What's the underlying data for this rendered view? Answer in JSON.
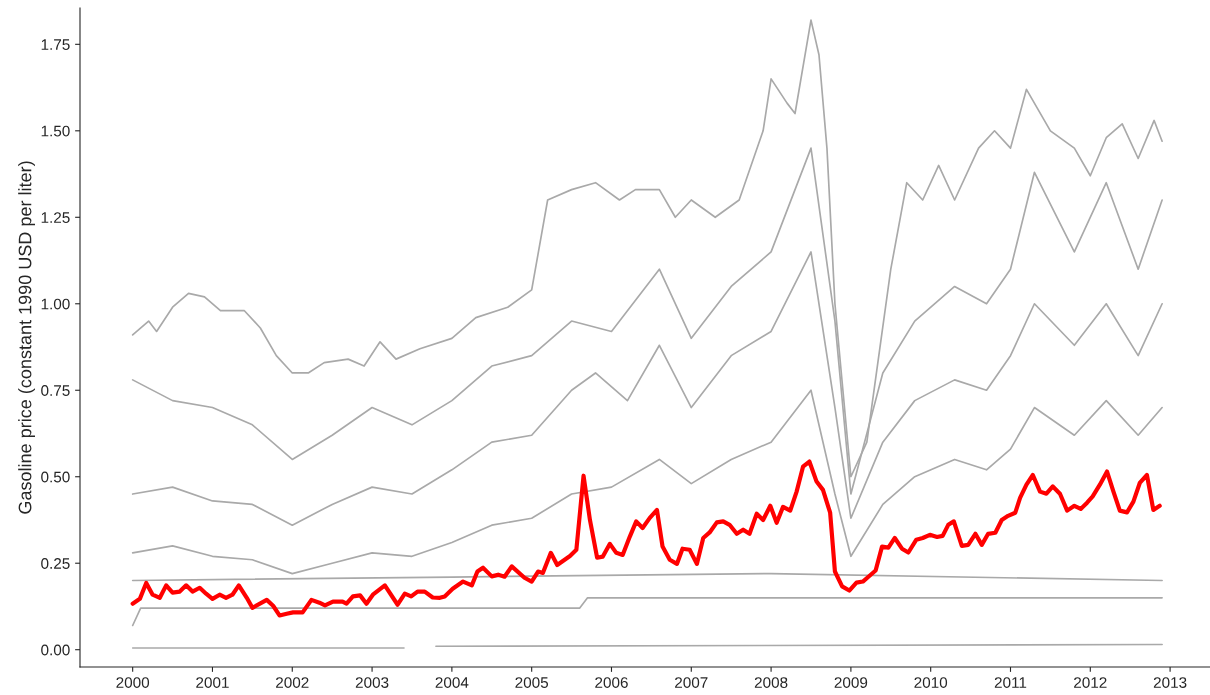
{
  "chart_data": {
    "type": "line",
    "ylabel": "Gasoline price (constant 1990 USD per liter)",
    "xlim": [
      1999.34,
      2013.5
    ],
    "ylim": [
      -0.05,
      1.855
    ],
    "xticks": [
      2000,
      2001,
      2002,
      2003,
      2004,
      2005,
      2006,
      2007,
      2008,
      2009,
      2010,
      2011,
      2012,
      2013
    ],
    "yticks": [
      {
        "value": 0,
        "label": "0.00"
      },
      {
        "value": 0.25,
        "label": "0.25"
      },
      {
        "value": 0.5,
        "label": "0.50"
      },
      {
        "value": 0.75,
        "label": "0.75"
      },
      {
        "value": 1,
        "label": "1.00"
      },
      {
        "value": 1.25,
        "label": "1.25"
      },
      {
        "value": 1.5,
        "label": "1.50"
      },
      {
        "value": 1.75,
        "label": "1.75"
      }
    ],
    "grid": false,
    "marker": "none",
    "line_style": "solid",
    "series": [
      {
        "color": "#a9a9a9",
        "x": [
          2000.0,
          2000.2,
          2000.3,
          2000.5,
          2000.7,
          2000.9,
          2001.1,
          2001.4,
          2001.6,
          2001.8,
          2002.0,
          2002.2,
          2002.4,
          2002.7,
          2002.9,
          2003.1,
          2003.3,
          2003.6,
          2004.0,
          2004.3,
          2004.7,
          2005.0,
          2005.2,
          2005.5,
          2005.8,
          2006.1,
          2006.3,
          2006.6,
          2006.8,
          2007.0,
          2007.3,
          2007.6,
          2007.9,
          2008.0,
          2008.2,
          2008.3,
          2008.5,
          2008.6,
          2008.7,
          2008.8,
          2009.0,
          2009.2,
          2009.5,
          2009.7,
          2009.9,
          2010.1,
          2010.3,
          2010.6,
          2010.8,
          2011.0,
          2011.2,
          2011.5,
          2011.8,
          2012.0,
          2012.2,
          2012.4,
          2012.6,
          2012.8,
          2012.9
        ],
        "values": [
          0.91,
          0.95,
          0.92,
          0.99,
          1.03,
          1.02,
          0.98,
          0.98,
          0.93,
          0.85,
          0.8,
          0.8,
          0.83,
          0.84,
          0.82,
          0.89,
          0.84,
          0.87,
          0.9,
          0.96,
          0.99,
          1.04,
          1.3,
          1.33,
          1.35,
          1.3,
          1.33,
          1.33,
          1.25,
          1.3,
          1.25,
          1.3,
          1.5,
          1.65,
          1.58,
          1.55,
          1.82,
          1.72,
          1.45,
          1.0,
          0.5,
          0.6,
          1.1,
          1.35,
          1.3,
          1.4,
          1.3,
          1.45,
          1.5,
          1.45,
          1.62,
          1.5,
          1.45,
          1.37,
          1.48,
          1.52,
          1.42,
          1.53,
          1.47
        ]
      },
      {
        "color": "#a9a9a9",
        "x": [
          2000.0,
          2000.5,
          2001.0,
          2001.5,
          2002.0,
          2002.5,
          2003.0,
          2003.5,
          2004.0,
          2004.5,
          2005.0,
          2005.5,
          2006.0,
          2006.6,
          2007.0,
          2007.5,
          2008.0,
          2008.5,
          2008.8,
          2009.0,
          2009.4,
          2009.8,
          2010.3,
          2010.7,
          2011.0,
          2011.3,
          2011.8,
          2012.2,
          2012.6,
          2012.9
        ],
        "values": [
          0.78,
          0.72,
          0.7,
          0.65,
          0.55,
          0.62,
          0.7,
          0.65,
          0.72,
          0.82,
          0.85,
          0.95,
          0.92,
          1.1,
          0.9,
          1.05,
          1.15,
          1.45,
          0.95,
          0.45,
          0.8,
          0.95,
          1.05,
          1.0,
          1.1,
          1.38,
          1.15,
          1.35,
          1.1,
          1.3
        ]
      },
      {
        "color": "#a9a9a9",
        "x": [
          2000.0,
          2000.5,
          2001.0,
          2001.5,
          2002.0,
          2002.5,
          2003.0,
          2003.5,
          2004.0,
          2004.5,
          2005.0,
          2005.5,
          2005.8,
          2006.2,
          2006.6,
          2007.0,
          2007.5,
          2008.0,
          2008.5,
          2008.8,
          2009.0,
          2009.4,
          2009.8,
          2010.3,
          2010.7,
          2011.0,
          2011.3,
          2011.8,
          2012.2,
          2012.6,
          2012.9
        ],
        "values": [
          0.45,
          0.47,
          0.43,
          0.42,
          0.36,
          0.42,
          0.47,
          0.45,
          0.52,
          0.6,
          0.62,
          0.75,
          0.8,
          0.72,
          0.88,
          0.7,
          0.85,
          0.92,
          1.15,
          0.7,
          0.38,
          0.6,
          0.72,
          0.78,
          0.75,
          0.85,
          1.0,
          0.88,
          1.0,
          0.85,
          1.0
        ]
      },
      {
        "color": "#a9a9a9",
        "x": [
          2000.0,
          2000.5,
          2001.0,
          2001.5,
          2002.0,
          2002.5,
          2003.0,
          2003.5,
          2004.0,
          2004.5,
          2005.0,
          2005.5,
          2006.0,
          2006.6,
          2007.0,
          2007.5,
          2008.0,
          2008.5,
          2008.8,
          2009.0,
          2009.4,
          2009.8,
          2010.3,
          2010.7,
          2011.0,
          2011.3,
          2011.8,
          2012.2,
          2012.6,
          2012.9
        ],
        "values": [
          0.28,
          0.3,
          0.27,
          0.26,
          0.22,
          0.25,
          0.28,
          0.27,
          0.31,
          0.36,
          0.38,
          0.45,
          0.47,
          0.55,
          0.48,
          0.55,
          0.6,
          0.75,
          0.45,
          0.27,
          0.42,
          0.5,
          0.55,
          0.52,
          0.58,
          0.7,
          0.62,
          0.72,
          0.62,
          0.7
        ]
      },
      {
        "color": "#a9a9a9",
        "x": [
          2000.0,
          2004.0,
          2008.0,
          2012.9
        ],
        "values": [
          0.2,
          0.21,
          0.22,
          0.2
        ]
      },
      {
        "color": "#a9a9a9",
        "x": [
          2000.0,
          2000.1,
          2005.6,
          2005.7,
          2012.9
        ],
        "values": [
          0.07,
          0.12,
          0.12,
          0.15,
          0.15
        ]
      },
      {
        "color": "#a9a9a9",
        "x": [
          2000.0,
          2003.4,
          2003.5,
          2003.8,
          2012.9
        ],
        "values": [
          0.005,
          0.005,
          null,
          0.01,
          0.015
        ]
      },
      {
        "color": "#ff0000",
        "x": [
          2000.0,
          2000.09,
          2000.17,
          2000.25,
          2000.34,
          2000.42,
          2000.5,
          2000.59,
          2000.67,
          2000.75,
          2000.84,
          2000.92,
          2001.0,
          2001.09,
          2001.17,
          2001.25,
          2001.33,
          2001.43,
          2001.5,
          2001.68,
          2001.76,
          2001.84,
          2001.93,
          2002.01,
          2002.13,
          2002.24,
          2002.34,
          2002.41,
          2002.51,
          2002.63,
          2002.68,
          2002.76,
          2002.85,
          2002.93,
          2003.01,
          2003.16,
          2003.32,
          2003.41,
          2003.49,
          2003.57,
          2003.66,
          2003.76,
          2003.85,
          2003.91,
          2004.01,
          2004.14,
          2004.25,
          2004.32,
          2004.39,
          2004.5,
          2004.58,
          2004.66,
          2004.75,
          2004.91,
          2005.0,
          2005.08,
          2005.14,
          2005.24,
          2005.32,
          2005.48,
          2005.56,
          2005.65,
          2005.73,
          2005.82,
          2005.89,
          2005.98,
          2006.06,
          2006.14,
          2006.23,
          2006.31,
          2006.39,
          2006.48,
          2006.57,
          2006.64,
          2006.73,
          2006.82,
          2006.89,
          2006.98,
          2007.07,
          2007.15,
          2007.23,
          2007.32,
          2007.4,
          2007.48,
          2007.57,
          2007.65,
          2007.73,
          2007.82,
          2007.9,
          2007.99,
          2008.07,
          2008.15,
          2008.24,
          2008.32,
          2008.4,
          2008.48,
          2008.57,
          2008.65,
          2008.74,
          2008.8,
          2008.89,
          2008.98,
          2009.07,
          2009.15,
          2009.22,
          2009.31,
          2009.39,
          2009.47,
          2009.55,
          2009.64,
          2009.72,
          2009.82,
          2009.9,
          2009.99,
          2010.08,
          2010.15,
          2010.22,
          2010.29,
          2010.39,
          2010.47,
          2010.56,
          2010.64,
          2010.72,
          2010.81,
          2010.89,
          2010.97,
          2011.06,
          2011.12,
          2011.2,
          2011.28,
          2011.37,
          2011.45,
          2011.53,
          2011.62,
          2011.71,
          2011.8,
          2011.88,
          2011.96,
          2012.03,
          2012.12,
          2012.21,
          2012.29,
          2012.37,
          2012.46,
          2012.54,
          2012.62,
          2012.71,
          2012.79,
          2012.87
        ],
        "values": [
          0.133,
          0.147,
          0.193,
          0.159,
          0.15,
          0.186,
          0.165,
          0.168,
          0.186,
          0.168,
          0.179,
          0.162,
          0.147,
          0.159,
          0.15,
          0.159,
          0.186,
          0.15,
          0.121,
          0.144,
          0.127,
          0.099,
          0.104,
          0.108,
          0.108,
          0.144,
          0.136,
          0.128,
          0.139,
          0.139,
          0.133,
          0.154,
          0.157,
          0.133,
          0.159,
          0.186,
          0.13,
          0.162,
          0.154,
          0.168,
          0.168,
          0.151,
          0.15,
          0.154,
          0.176,
          0.197,
          0.186,
          0.226,
          0.237,
          0.212,
          0.217,
          0.211,
          0.241,
          0.208,
          0.197,
          0.226,
          0.222,
          0.28,
          0.245,
          0.271,
          0.289,
          0.503,
          0.375,
          0.266,
          0.269,
          0.306,
          0.28,
          0.274,
          0.327,
          0.371,
          0.352,
          0.381,
          0.404,
          0.298,
          0.26,
          0.248,
          0.292,
          0.289,
          0.248,
          0.323,
          0.339,
          0.368,
          0.371,
          0.361,
          0.335,
          0.347,
          0.335,
          0.393,
          0.375,
          0.416,
          0.367,
          0.413,
          0.402,
          0.457,
          0.529,
          0.544,
          0.486,
          0.462,
          0.396,
          0.226,
          0.183,
          0.171,
          0.194,
          0.197,
          0.211,
          0.229,
          0.298,
          0.295,
          0.323,
          0.292,
          0.281,
          0.318,
          0.323,
          0.332,
          0.326,
          0.329,
          0.361,
          0.371,
          0.3,
          0.303,
          0.335,
          0.303,
          0.335,
          0.338,
          0.375,
          0.387,
          0.396,
          0.439,
          0.477,
          0.505,
          0.457,
          0.451,
          0.472,
          0.451,
          0.402,
          0.416,
          0.407,
          0.425,
          0.443,
          0.477,
          0.515,
          0.457,
          0.402,
          0.397,
          0.428,
          0.482,
          0.505,
          0.404,
          0.416
        ]
      }
    ]
  }
}
